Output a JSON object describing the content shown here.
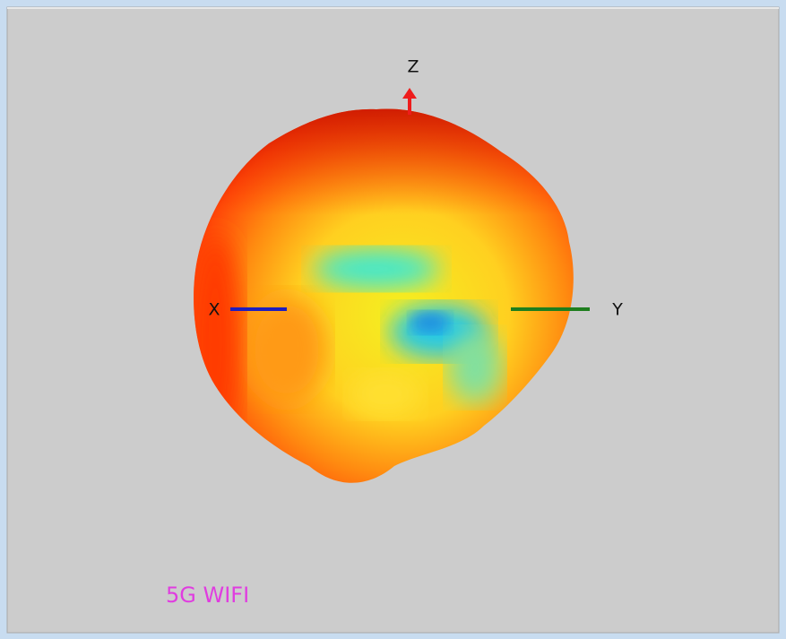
{
  "axes": {
    "z_label": "Z",
    "x_label": "X",
    "y_label": "Y"
  },
  "caption": "5G WIFI"
}
